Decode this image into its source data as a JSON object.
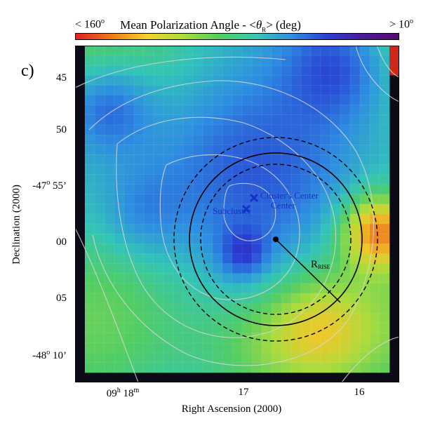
{
  "colorbar": {
    "title": "Mean Polarization Angle - <θR> (deg)",
    "left_label": "< 160°",
    "right_label": "> 10°",
    "stops": [
      "#e02020",
      "#f07a18",
      "#f2d32a",
      "#a9dd3a",
      "#4fcf5a",
      "#39c8b2",
      "#2f8fe0",
      "#2b40d6",
      "#4a1a9a",
      "#5b0a70"
    ]
  },
  "panel_letter": "c)",
  "axes": {
    "xlabel": "Right Ascension (2000)",
    "ylabel": "Declination (2000)",
    "x_ticks": [
      {
        "label": "09h 18m"
      },
      {
        "label": "17"
      },
      {
        "label": "16"
      }
    ],
    "y_ticks": [
      {
        "label": "45"
      },
      {
        "label": "50"
      },
      {
        "label": "-47° 55’"
      },
      {
        "label": "00"
      },
      {
        "label": "05"
      },
      {
        "label": "-48° 10’"
      }
    ]
  },
  "annotations": {
    "cluster_center": "Cluster's Center",
    "subcluster": "Subcluster",
    "radius_label": "RRISE"
  },
  "chart_data": {
    "type": "heatmap",
    "title": "Mean Polarization Angle - <θR> (deg)",
    "xlabel": "Right Ascension (2000)",
    "ylabel": "Declination (2000)",
    "x_tick_labels": [
      "09h 18m",
      "17",
      "16"
    ],
    "y_tick_labels": [
      "45",
      "50",
      "-47° 55’",
      "00",
      "05",
      "-48° 10’"
    ],
    "color_scale": {
      "min_label": "< 160°",
      "max_label": "> 10°"
    },
    "markers": [
      {
        "name": "Cluster's Center",
        "symbol": "x"
      },
      {
        "name": "Subcluster",
        "symbol": "x"
      }
    ]
  }
}
